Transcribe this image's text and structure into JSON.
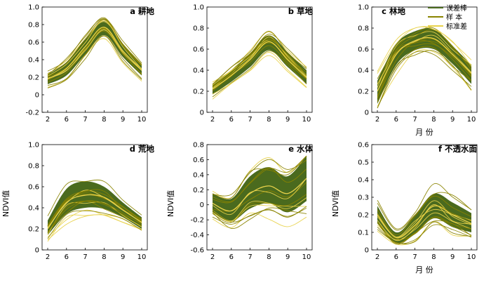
{
  "colors": {
    "error_band": "#4a6a1e",
    "samples": "#8a8400",
    "std_dev": "#e8d24a"
  },
  "legend": [
    {
      "label": "误差棒",
      "kind": "error_band"
    },
    {
      "label": "样 本",
      "kind": "samples"
    },
    {
      "label": "标准差",
      "kind": "std_dev"
    }
  ],
  "chart_data": [
    {
      "type": "line",
      "title": "a 耕地",
      "xlabel": "",
      "ylabel": "",
      "x": [
        2,
        6,
        7,
        8,
        9,
        10
      ],
      "xticks": [
        2,
        6,
        7,
        8,
        9,
        10
      ],
      "ylim": [
        -0.2,
        1.0
      ],
      "yticks": [
        "-0.2",
        "0",
        "0.2",
        "0.4",
        "0.6",
        "0.8",
        "1.0"
      ],
      "mean": [
        0.18,
        0.3,
        0.55,
        0.77,
        0.5,
        0.28
      ],
      "band_upper": [
        0.23,
        0.37,
        0.63,
        0.84,
        0.58,
        0.35
      ],
      "band_lower": [
        0.12,
        0.22,
        0.46,
        0.68,
        0.43,
        0.22
      ],
      "sample_range": [
        0.0,
        0.88
      ]
    },
    {
      "type": "line",
      "title": "b 草地",
      "xlabel": "",
      "ylabel": "",
      "x": [
        2,
        6,
        7,
        8,
        9,
        10
      ],
      "xticks": [
        2,
        6,
        7,
        8,
        9,
        10
      ],
      "ylim": [
        0,
        1.0
      ],
      "yticks": [
        "0",
        "0.2",
        "0.4",
        "0.6",
        "0.8",
        "1.0"
      ],
      "mean": [
        0.22,
        0.35,
        0.5,
        0.67,
        0.5,
        0.33
      ],
      "band_upper": [
        0.27,
        0.4,
        0.56,
        0.73,
        0.57,
        0.4
      ],
      "band_lower": [
        0.17,
        0.29,
        0.43,
        0.59,
        0.43,
        0.27
      ],
      "sample_range": [
        0.03,
        0.77
      ]
    },
    {
      "type": "line",
      "title": "c 林地",
      "xlabel": "月 份",
      "ylabel": "",
      "x": [
        2,
        6,
        7,
        8,
        9,
        10
      ],
      "xticks": [
        2,
        6,
        7,
        8,
        9,
        10
      ],
      "ylim": [
        0,
        1.0
      ],
      "yticks": [
        "0",
        "0.2",
        "0.4",
        "0.6",
        "0.8",
        "1.0"
      ],
      "mean": [
        0.2,
        0.55,
        0.68,
        0.7,
        0.55,
        0.37
      ],
      "band_upper": [
        0.3,
        0.65,
        0.77,
        0.79,
        0.63,
        0.45
      ],
      "band_lower": [
        0.08,
        0.45,
        0.59,
        0.6,
        0.46,
        0.27
      ],
      "sample_range": [
        0.04,
        0.8
      ]
    },
    {
      "type": "line",
      "title": "d 荒地",
      "xlabel": "",
      "ylabel": "NDVI值",
      "x": [
        2,
        6,
        7,
        8,
        9,
        10
      ],
      "xticks": [
        2,
        6,
        7,
        8,
        9,
        10
      ],
      "ylim": [
        0,
        1.0
      ],
      "yticks": [
        "0",
        "0.2",
        "0.4",
        "0.6",
        "0.8",
        "1.0"
      ],
      "mean": [
        0.2,
        0.45,
        0.52,
        0.5,
        0.38,
        0.26
      ],
      "band_upper": [
        0.28,
        0.58,
        0.65,
        0.6,
        0.45,
        0.31
      ],
      "band_lower": [
        0.14,
        0.34,
        0.4,
        0.39,
        0.31,
        0.2
      ],
      "sample_range": [
        0.02,
        0.65
      ]
    },
    {
      "type": "line",
      "title": "e 水体",
      "xlabel": "",
      "ylabel": "NDVI值",
      "x": [
        2,
        6,
        7,
        8,
        9,
        10
      ],
      "xticks": [
        2,
        6,
        7,
        8,
        9,
        10
      ],
      "ylim": [
        -0.6,
        0.8
      ],
      "yticks": [
        "-0.6",
        "-0.4",
        "-0.2",
        "0",
        "0.2",
        "0.4",
        "0.6",
        "0.8"
      ],
      "mean": [
        0.02,
        -0.08,
        0.15,
        0.25,
        0.15,
        0.35
      ],
      "band_upper": [
        0.15,
        0.08,
        0.38,
        0.5,
        0.38,
        0.65
      ],
      "band_lower": [
        -0.1,
        -0.22,
        -0.05,
        0.02,
        -0.1,
        0.05
      ],
      "sample_range": [
        -0.55,
        0.65
      ]
    },
    {
      "type": "line",
      "title": "f 不透水面",
      "xlabel": "月 份",
      "ylabel": "NDVI值",
      "x": [
        2,
        6,
        7,
        8,
        9,
        10
      ],
      "xticks": [
        2,
        6,
        7,
        8,
        9,
        10
      ],
      "ylim": [
        0,
        0.6
      ],
      "yticks": [
        "0",
        "0.1",
        "0.2",
        "0.3",
        "0.4",
        "0.5",
        "0.6"
      ],
      "mean": [
        0.2,
        0.07,
        0.14,
        0.25,
        0.2,
        0.15
      ],
      "band_upper": [
        0.25,
        0.1,
        0.2,
        0.32,
        0.27,
        0.21
      ],
      "band_lower": [
        0.15,
        0.04,
        0.09,
        0.18,
        0.13,
        0.1
      ],
      "sample_range": [
        0.02,
        0.52
      ]
    }
  ]
}
